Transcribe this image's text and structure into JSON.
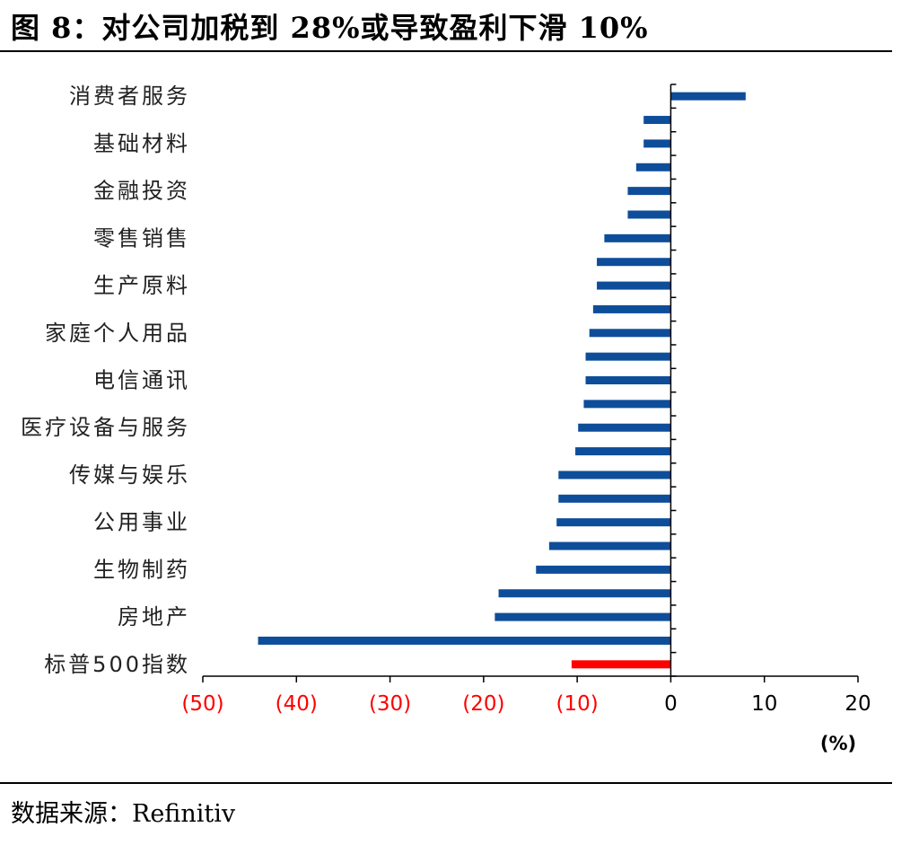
{
  "figure": {
    "title": "图 8：对公司加税到 28%或导致盈利下滑 10%",
    "source": "数据来源：Refinitiv"
  },
  "chart_data": {
    "type": "bar",
    "orientation": "horizontal",
    "unit": "(%)",
    "xlim": [
      -50,
      20
    ],
    "x_ticks": [
      -50,
      -40,
      -30,
      -20,
      -10,
      0,
      10,
      20
    ],
    "x_tick_labels": [
      "(50)",
      "(40)",
      "(30)",
      "(20)",
      "(10)",
      "0",
      "10",
      "20"
    ],
    "negative_tick_color": "#ff0000",
    "bar_color": "#0e4d9a",
    "highlight_color": "#ff0000",
    "grid": false,
    "categories": [
      "消费者服务",
      "",
      "基础材料",
      "",
      "金融投资",
      "",
      "零售销售",
      "",
      "生产原料",
      "",
      "家庭个人用品",
      "",
      "电信通讯",
      "",
      "医疗设备与服务",
      "",
      "传媒与娱乐",
      "",
      "公用事业",
      "",
      "生物制药",
      "",
      "房地产",
      "",
      "标普500指数"
    ],
    "values": [
      8.0,
      -2.9,
      -2.9,
      -3.7,
      -4.6,
      -4.6,
      -7.1,
      -7.9,
      -7.9,
      -8.3,
      -8.7,
      -9.1,
      -9.1,
      -9.3,
      -9.9,
      -10.2,
      -12.0,
      -12.0,
      -12.2,
      -13.0,
      -14.4,
      -18.4,
      -18.8,
      -44.1,
      -10.6
    ],
    "highlight_index": 24
  }
}
